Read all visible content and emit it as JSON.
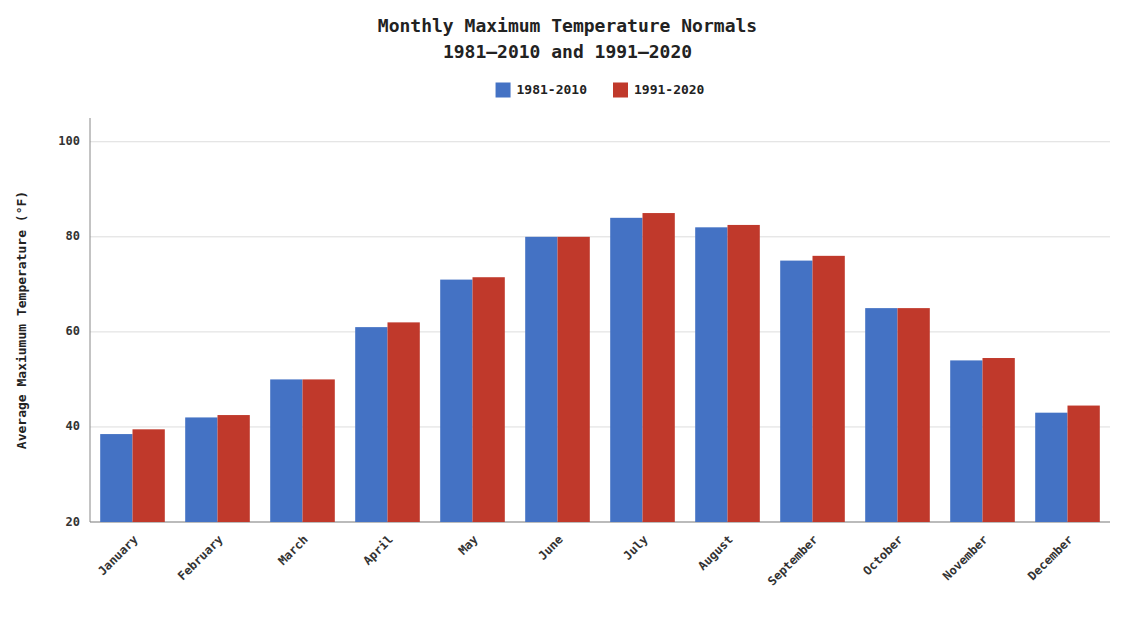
{
  "chart_data": {
    "type": "bar",
    "title": "Monthly Maximum Temperature Normals",
    "subtitle": "1981–2010 and 1991–2020",
    "y_label": "Average Maxiumum Temperature (°F)",
    "categories": [
      "January",
      "February",
      "March",
      "April",
      "May",
      "June",
      "July",
      "August",
      "September",
      "October",
      "November",
      "December"
    ],
    "series": [
      {
        "name": "1981-2010",
        "color": "#4472C4",
        "values": [
          38.5,
          42,
          50,
          61,
          71,
          80,
          84,
          82,
          75,
          65,
          54,
          43
        ]
      },
      {
        "name": "1991-2020",
        "color": "#C0392B",
        "values": [
          39.5,
          42.5,
          50,
          62,
          71.5,
          80,
          85,
          82.5,
          76,
          65,
          54.5,
          44.5
        ]
      }
    ],
    "ylim": [
      20,
      105
    ],
    "yticks": [
      20,
      40,
      60,
      80,
      100
    ],
    "grid": true,
    "legend": "top"
  }
}
